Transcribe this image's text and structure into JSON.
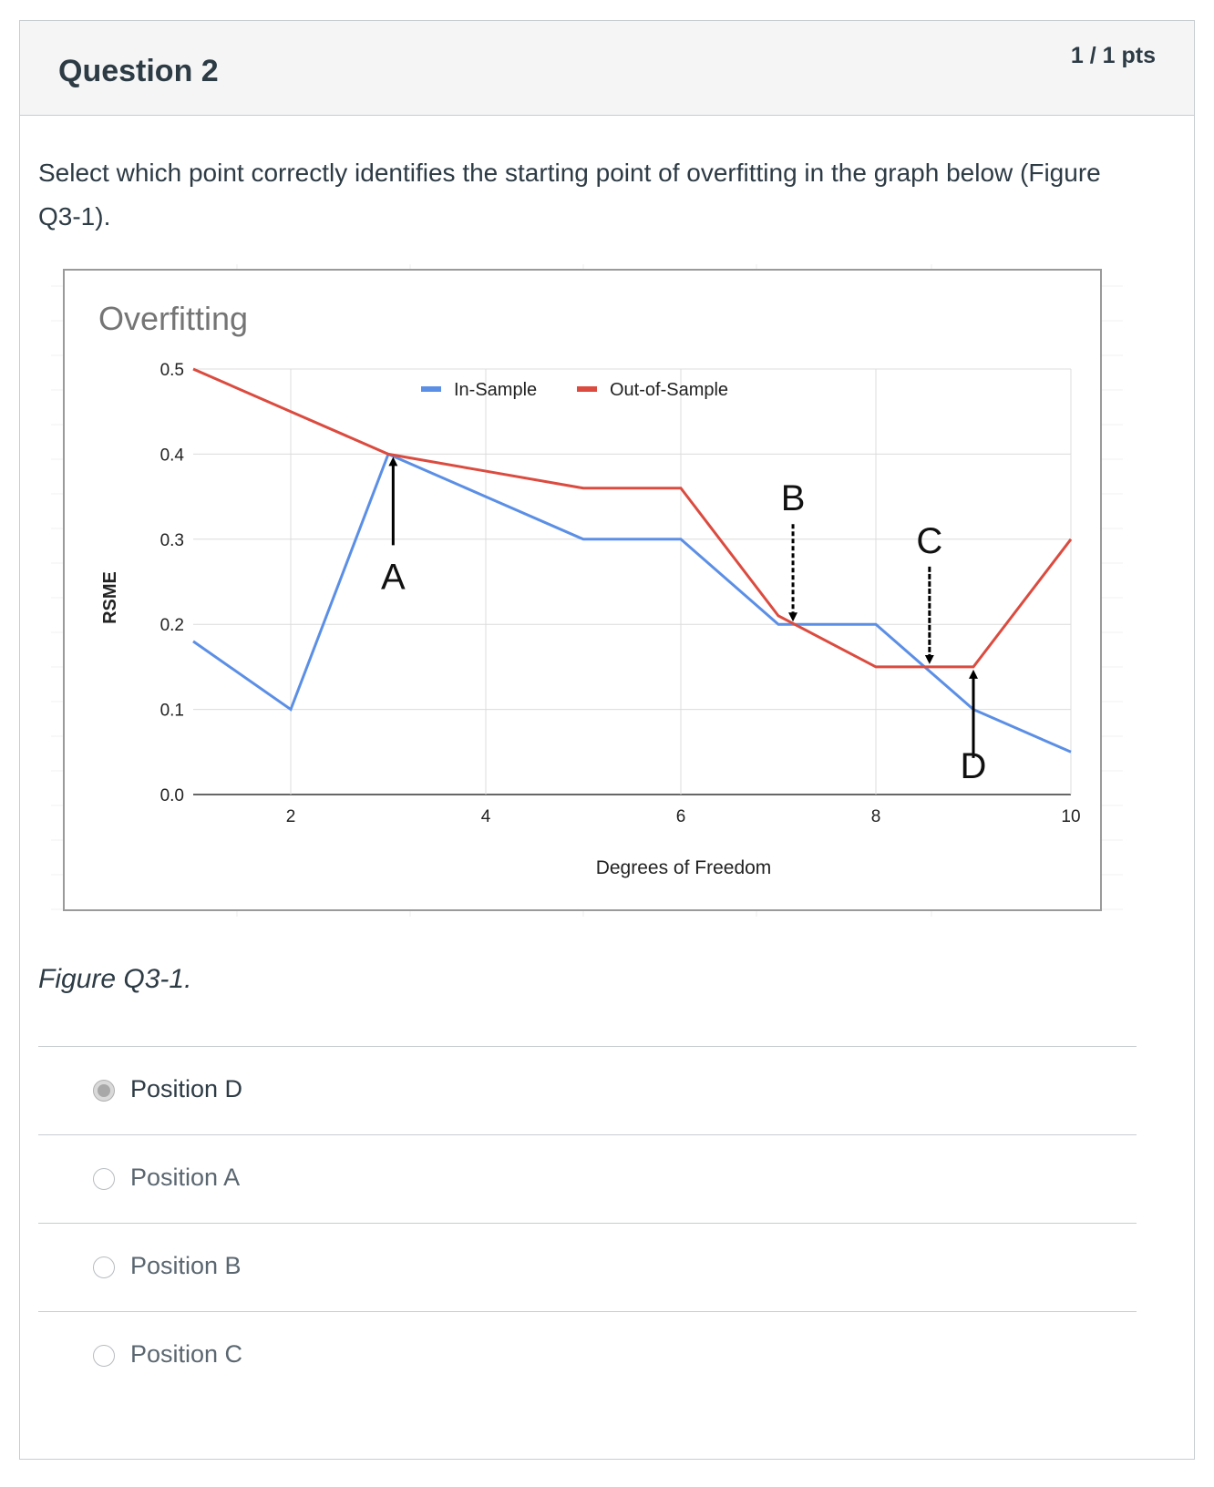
{
  "question": {
    "title": "Question 2",
    "points": "1 / 1 pts",
    "prompt": "Select which point correctly identifies the starting point of overfitting in the graph below (Figure Q3-1).",
    "caption": "Figure Q3-1."
  },
  "answers": [
    {
      "label": "Position D",
      "selected": true
    },
    {
      "label": "Position A",
      "selected": false
    },
    {
      "label": "Position B",
      "selected": false
    },
    {
      "label": "Position C",
      "selected": false
    }
  ],
  "colors": {
    "in_sample": "#5b8fe6",
    "out_of_sample": "#db4b3f"
  },
  "chart_data": {
    "type": "line",
    "title": "Overfitting",
    "xlabel": "Degrees of Freedom",
    "ylabel": "RSME",
    "xlim": [
      1,
      10
    ],
    "ylim": [
      0,
      0.5
    ],
    "x_ticks": [
      "2",
      "4",
      "6",
      "8",
      "10"
    ],
    "y_ticks": [
      "0.5",
      "0.4",
      "0.3",
      "0.2",
      "0.1",
      "0.0"
    ],
    "legend_position": "top",
    "series": [
      {
        "name": "In-Sample",
        "x": [
          1,
          2,
          3,
          4,
          5,
          6,
          7,
          8,
          9,
          10
        ],
        "values": [
          0.18,
          0.1,
          0.4,
          0.35,
          0.3,
          0.3,
          0.2,
          0.2,
          0.1,
          0.05
        ]
      },
      {
        "name": "Out-of-Sample",
        "x": [
          1,
          2,
          3,
          4,
          5,
          6,
          7,
          8,
          9,
          10
        ],
        "values": [
          0.5,
          0.45,
          0.4,
          0.38,
          0.36,
          0.36,
          0.21,
          0.15,
          0.15,
          0.3
        ]
      }
    ],
    "annotations": [
      {
        "label": "A",
        "x": 3.05,
        "y": 0.4,
        "direction": "up"
      },
      {
        "label": "B",
        "x": 7.15,
        "y": 0.2,
        "direction": "down"
      },
      {
        "label": "C",
        "x": 8.55,
        "y": 0.15,
        "direction": "down"
      },
      {
        "label": "D",
        "x": 9.0,
        "y": 0.15,
        "direction": "up"
      }
    ]
  }
}
